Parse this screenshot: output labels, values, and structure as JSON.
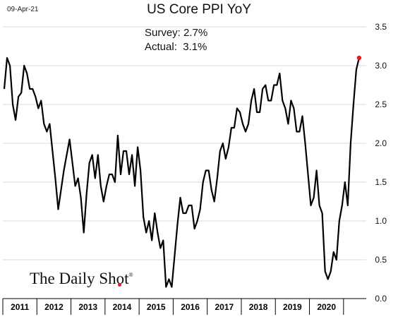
{
  "header": {
    "date": "09-Apr-21",
    "title": "US Core PPI YoY"
  },
  "annotations": {
    "survey": "Survey: 2.7%",
    "actual": "Actual:  3.1%"
  },
  "logo": {
    "text": "The Daily Shot",
    "mark": "®",
    "dot_color": "#e8182a"
  },
  "chart_data": {
    "type": "line",
    "title": "US Core PPI YoY",
    "xlabel": "",
    "ylabel": "",
    "x_start": "2011-01",
    "x_end": "2021-03",
    "x_tick_labels": [
      "2011",
      "2012",
      "2013",
      "2014",
      "2015",
      "2016",
      "2017",
      "2018",
      "2019",
      "2020"
    ],
    "ylim": [
      0,
      3.5
    ],
    "y_ticks": [
      "0.0",
      "0.5",
      "1.0",
      "1.5",
      "2.0",
      "2.5",
      "3.0",
      "3.5"
    ],
    "grid": "horizontal",
    "line_color": "#000000",
    "marker_color": "#e8182a",
    "series": [
      {
        "values": [
          2.7,
          3.1,
          3.0,
          2.5,
          2.3,
          2.6,
          2.65,
          3.0,
          2.9,
          2.7,
          2.7,
          2.6,
          2.45,
          2.55,
          2.25,
          2.15,
          2.25,
          1.9,
          1.55,
          1.15,
          1.4,
          1.65,
          1.85,
          2.05,
          1.75,
          1.45,
          1.55,
          1.3,
          0.85,
          1.35,
          1.75,
          1.85,
          1.55,
          1.85,
          1.45,
          1.25,
          1.45,
          1.6,
          1.6,
          1.5,
          2.1,
          1.6,
          1.9,
          1.9,
          1.6,
          1.85,
          1.45,
          1.95,
          1.65,
          1.05,
          0.85,
          1.0,
          0.75,
          1.1,
          0.85,
          0.65,
          0.75,
          0.15,
          0.25,
          0.15,
          0.55,
          0.95,
          1.3,
          1.1,
          1.1,
          1.2,
          1.2,
          0.9,
          1.0,
          1.15,
          1.5,
          1.65,
          1.65,
          1.4,
          1.25,
          1.55,
          1.9,
          2.0,
          1.8,
          1.95,
          2.2,
          2.2,
          2.45,
          2.4,
          2.25,
          2.15,
          2.25,
          2.55,
          2.7,
          2.4,
          2.4,
          2.7,
          2.75,
          2.55,
          2.55,
          2.75,
          2.75,
          2.9,
          2.55,
          2.45,
          2.25,
          2.55,
          2.45,
          2.15,
          2.15,
          2.35,
          2.0,
          1.6,
          1.2,
          1.3,
          1.65,
          1.2,
          1.1,
          0.35,
          0.25,
          0.35,
          0.6,
          0.5,
          1.0,
          1.2,
          1.5,
          1.2,
          2.0,
          2.5,
          2.95,
          3.1
        ]
      }
    ]
  }
}
